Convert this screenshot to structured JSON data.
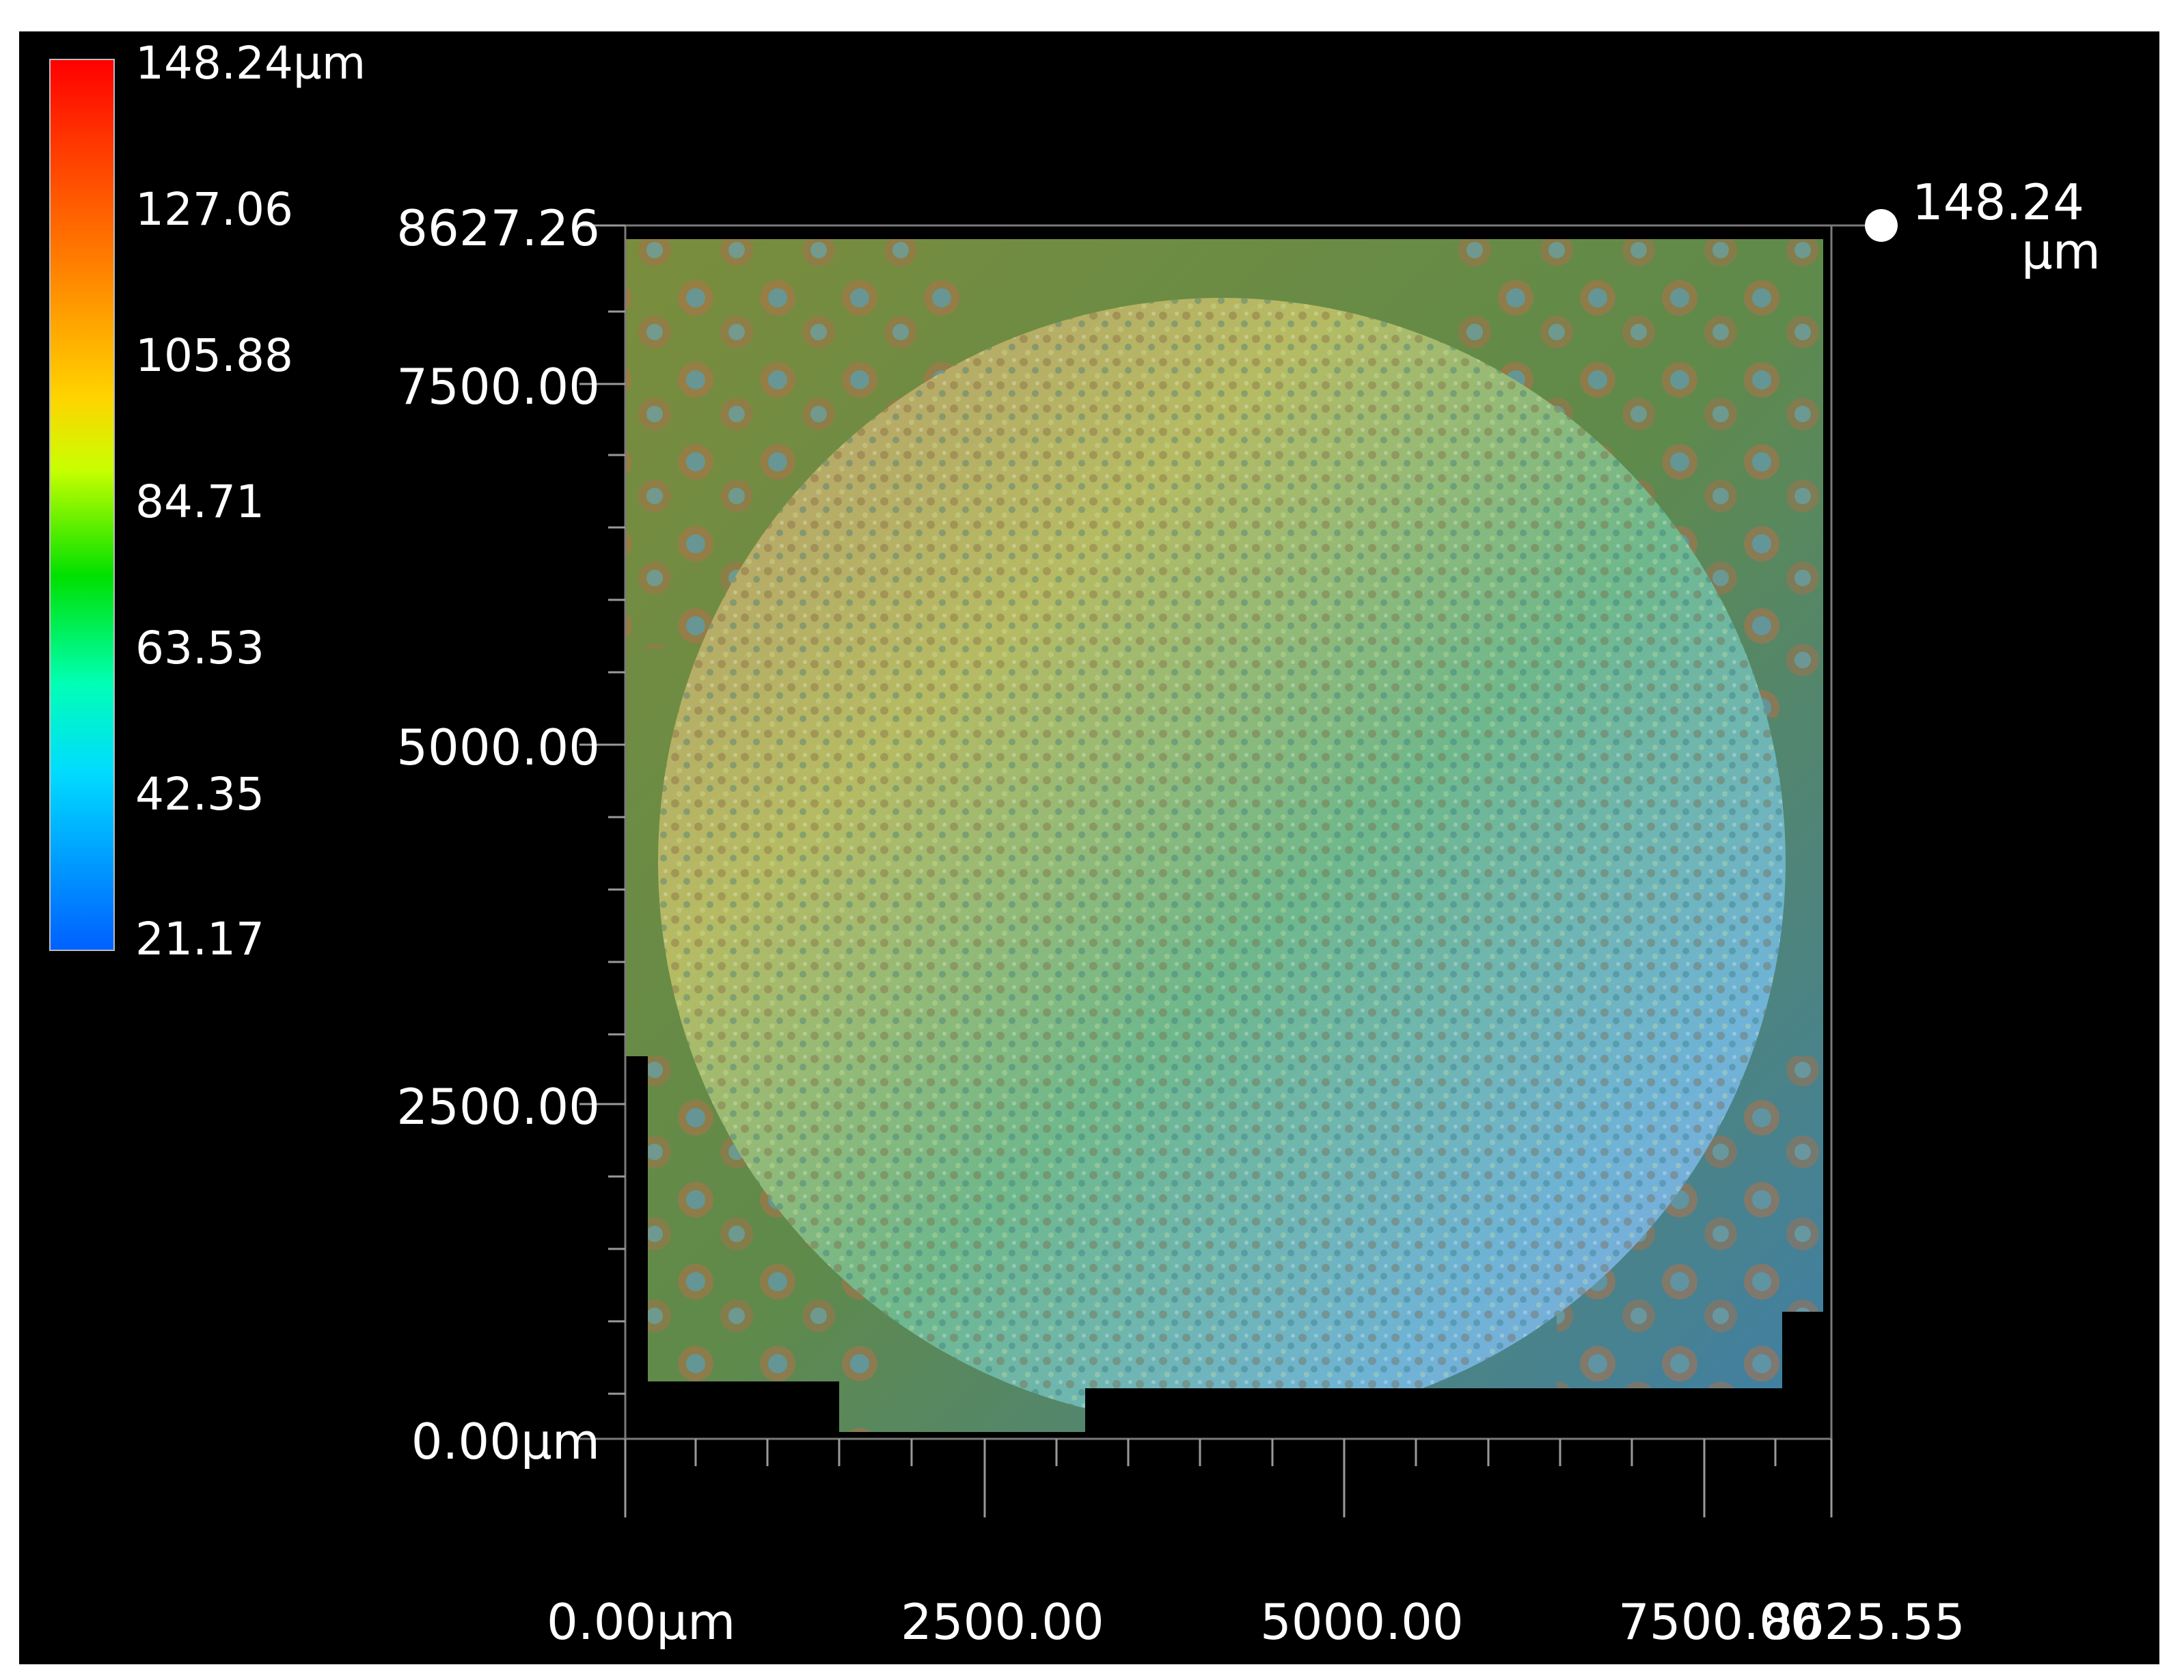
{
  "colorbar": {
    "labels": [
      "148.24µm",
      "127.06",
      "105.88",
      "84.71",
      "63.53",
      "42.35",
      "21.17"
    ]
  },
  "y_axis": {
    "labels": [
      "8627.26",
      "7500.00",
      "5000.00",
      "2500.00",
      "0.00µm"
    ]
  },
  "x_axis": {
    "labels": [
      "0.00µm",
      "2500.00",
      "5000.00",
      "7500.00",
      "8625.55"
    ]
  },
  "z_marker": {
    "value": "148.24",
    "unit": "µm"
  },
  "colors": {
    "background": "#000000",
    "frame": "#ffffff",
    "surface_green": "#6f8f3a",
    "surface_blue": "#4f8fbf"
  }
}
